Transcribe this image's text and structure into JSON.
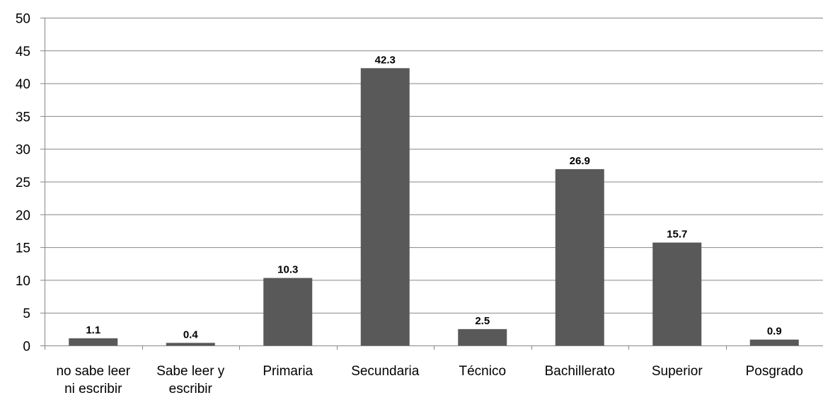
{
  "chart_data": {
    "type": "bar",
    "title": "",
    "xlabel": "",
    "ylabel": "",
    "categories": [
      [
        "no sabe leer",
        "ni escribir"
      ],
      [
        "Sabe leer y",
        "escribir"
      ],
      [
        "Primaria"
      ],
      [
        "Secundaria"
      ],
      [
        "Técnico"
      ],
      [
        "Bachillerato"
      ],
      [
        "Superior"
      ],
      [
        "Posgrado"
      ]
    ],
    "values": [
      1.1,
      0.4,
      10.3,
      42.3,
      2.5,
      26.9,
      15.7,
      0.9
    ],
    "data_labels": [
      "1.1",
      "0.4",
      "10.3",
      "42.3",
      "2.5",
      "26.9",
      "15.7",
      "0.9"
    ],
    "ylim": [
      0,
      50
    ],
    "yticks": [
      0,
      5,
      10,
      15,
      20,
      25,
      30,
      35,
      40,
      45,
      50
    ],
    "grid": true,
    "legend": "none",
    "bar_color": "#595959",
    "grid_color": "#868686"
  }
}
